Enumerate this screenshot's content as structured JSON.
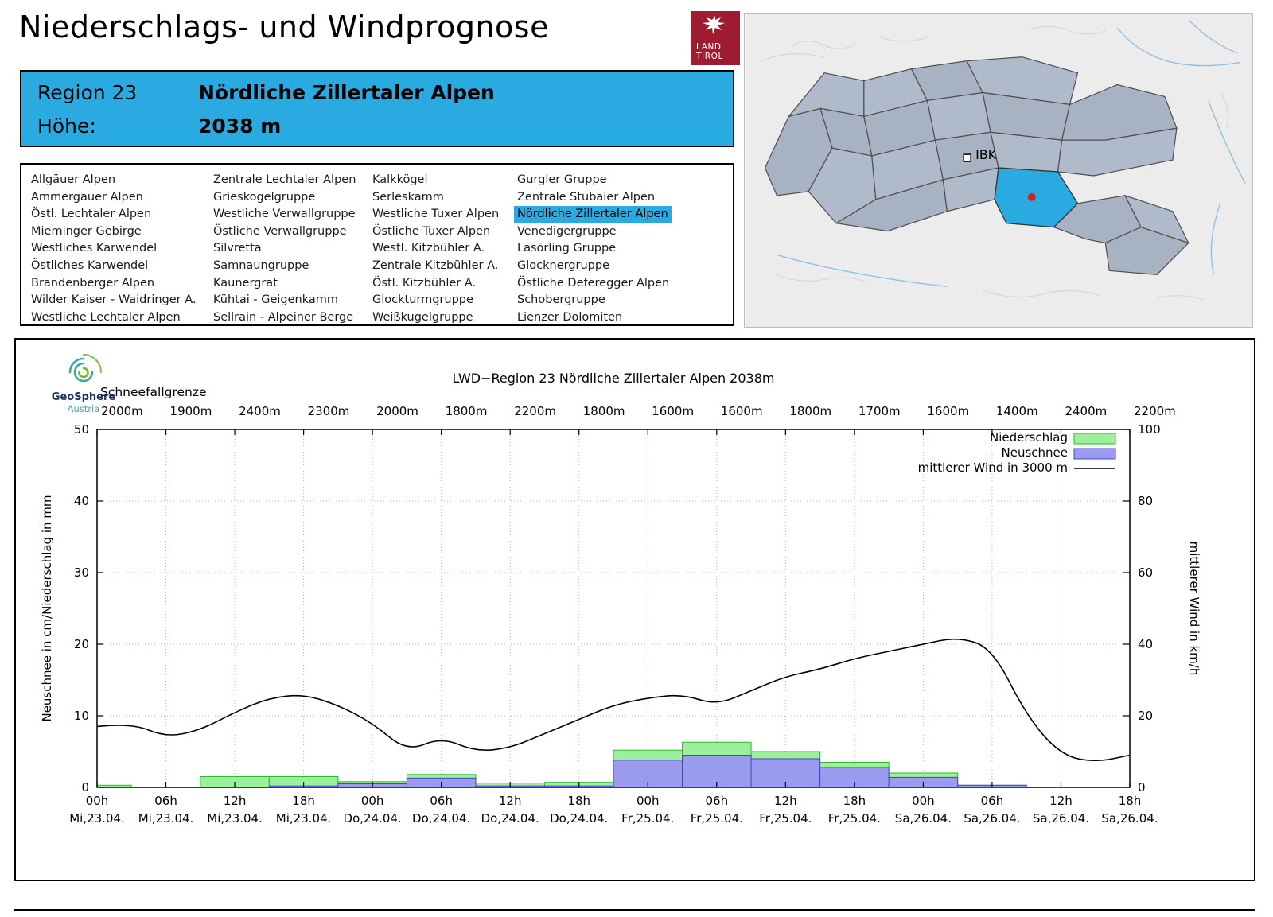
{
  "header": {
    "title": "Niederschlags- und Windprognose",
    "logo_line1": "LAND",
    "logo_line2": "TIROL"
  },
  "region_box": {
    "region_label": "Region 23",
    "region_name": "Nördliche Zillertaler Alpen",
    "elevation_label": "Höhe:",
    "elevation_value": "2038 m",
    "accent_color": "#29abe2"
  },
  "region_list": {
    "selected": "Nördliche Zillertaler Alpen",
    "columns": [
      [
        "Allgäuer Alpen",
        "Ammergauer Alpen",
        "Östl. Lechtaler Alpen",
        "Mieminger Gebirge",
        "Westliches Karwendel",
        "Östliches Karwendel",
        "Brandenberger Alpen",
        "Wilder Kaiser - Waidringer A.",
        "Westliche Lechtaler Alpen"
      ],
      [
        "Zentrale Lechtaler Alpen",
        "Grieskogelgruppe",
        "Westliche Verwallgruppe",
        "Östliche Verwallgruppe",
        "Silvretta",
        "Samnaungruppe",
        "Kaunergrat",
        "Kühtai - Geigenkamm",
        "Sellrain - Alpeiner Berge"
      ],
      [
        "Kalkkögel",
        "Serleskamm",
        "Westliche Tuxer Alpen",
        "Östliche Tuxer Alpen",
        "Westl. Kitzbühler A.",
        "Zentrale Kitzbühler A.",
        "Östl. Kitzbühler A.",
        "Glockturmgruppe",
        "Weißkugelgruppe"
      ],
      [
        "Gurgler Gruppe",
        "Zentrale Stubaier Alpen",
        "Nördliche Zillertaler Alpen",
        "Venedigergruppe",
        "Lasörling Gruppe",
        "Glocknergruppe",
        "Östliche Deferegger Alpen",
        "Schobergruppe",
        "Lienzer Dolomiten"
      ]
    ]
  },
  "map": {
    "marker_label": "IBK",
    "highlight_color": "#29abe2"
  },
  "chart_data": {
    "type": "bar",
    "title": "LWD−Region 23 Nördliche Zillertaler Alpen 2038m",
    "snowline_label": "Schneefallgrenze",
    "snowline_values": [
      "2000m",
      "1900m",
      "2400m",
      "2300m",
      "2000m",
      "1800m",
      "2200m",
      "1800m",
      "1600m",
      "1600m",
      "1800m",
      "1700m",
      "1600m",
      "1400m",
      "2400m",
      "2200m"
    ],
    "x_tick_hours": [
      "00h",
      "06h",
      "12h",
      "18h",
      "00h",
      "06h",
      "12h",
      "18h",
      "00h",
      "06h",
      "12h",
      "18h",
      "00h",
      "06h",
      "12h",
      "18h"
    ],
    "x_tick_dates": [
      "Mi,23.04.",
      "Mi,23.04.",
      "Mi,23.04.",
      "Mi,23.04.",
      "Do,24.04.",
      "Do,24.04.",
      "Do,24.04.",
      "Do,24.04.",
      "Fr,25.04.",
      "Fr,25.04.",
      "Fr,25.04.",
      "Fr,25.04.",
      "Sa,26.04.",
      "Sa,26.04.",
      "Sa,26.04.",
      "Sa,26.04."
    ],
    "ylabel_left": "Neuschnee in cm/Niederschlag in mm",
    "ylabel_right": "mittlerer Wind in km/h",
    "yticks_left": [
      0,
      10,
      20,
      30,
      40,
      50
    ],
    "yticks_right": [
      0,
      20,
      40,
      60,
      80,
      100
    ],
    "ylim_left": [
      0,
      50
    ],
    "ylim_right": [
      0,
      100
    ],
    "grid": true,
    "legend_position": "top-right",
    "legend": [
      {
        "label": "Niederschlag",
        "swatch": "box",
        "fill": "#9bf09b",
        "stroke": "#2db82d"
      },
      {
        "label": "Neuschnee",
        "swatch": "box",
        "fill": "#9a9aee",
        "stroke": "#4444cc"
      },
      {
        "label": "mittlerer Wind in 3000 m",
        "swatch": "line",
        "stroke": "#000000"
      }
    ],
    "series": [
      {
        "name": "Niederschlag",
        "unit": "mm",
        "axis": "left",
        "values": [
          0.3,
          0,
          1.5,
          1.5,
          0.8,
          1.8,
          0.6,
          0.7,
          5.2,
          6.3,
          5.0,
          3.5,
          2.0,
          0.3,
          0,
          0
        ]
      },
      {
        "name": "Neuschnee",
        "unit": "cm",
        "axis": "left",
        "values": [
          0,
          0,
          0,
          0.2,
          0.5,
          1.3,
          0.2,
          0.2,
          3.8,
          4.5,
          4.0,
          2.8,
          1.4,
          0.3,
          0,
          0
        ]
      },
      {
        "name": "mittlerer Wind in 3000 m",
        "unit": "km/h",
        "axis": "right",
        "type": "line",
        "hours": [
          0,
          3,
          6,
          9,
          12,
          15,
          18,
          21,
          24,
          27,
          30,
          33,
          36,
          39,
          42,
          45,
          48,
          51,
          54,
          57,
          60,
          63,
          66,
          69,
          72,
          75,
          78,
          81,
          84,
          87,
          90
        ],
        "values": [
          17,
          18,
          14,
          16,
          21,
          25,
          26,
          23,
          18,
          10,
          14,
          10,
          11,
          15,
          19,
          23,
          25,
          26,
          23,
          27,
          31,
          33,
          36,
          38,
          40,
          42,
          39,
          20,
          9,
          7,
          9
        ]
      }
    ],
    "logo": {
      "name": "GeoSphere",
      "sub": "Austria"
    }
  }
}
